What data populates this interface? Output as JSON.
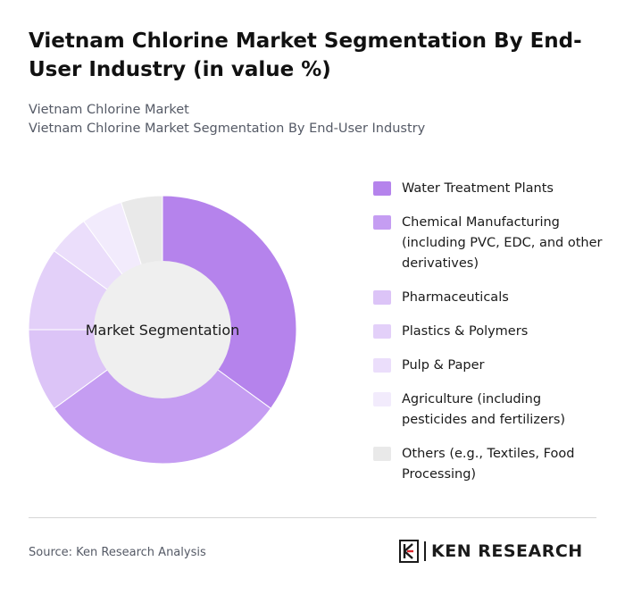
{
  "header": {
    "title": "Vietnam Chlorine Market Segmentation By End-User Industry (in value %)",
    "breadcrumb_1": "Vietnam Chlorine Market",
    "breadcrumb_2": "Vietnam Chlorine Market Segmentation By End-User Industry"
  },
  "chart_data": {
    "type": "pie",
    "variant": "donut",
    "center_label": "Market Segmentation",
    "legend_position": "right",
    "categories": [
      "Water Treatment Plants",
      "Chemical Manufacturing (including PVC, EDC, and other derivatives)",
      "Pharmaceuticals",
      "Plastics & Polymers",
      "Pulp & Paper",
      "Agriculture (including pesticides and fertilizers)",
      "Others (e.g., Textiles, Food Processing)"
    ],
    "values": [
      35,
      30,
      10,
      10,
      5,
      5,
      5
    ],
    "colors": [
      "#b583ec",
      "#c59df2",
      "#dcc4f7",
      "#e3d0f9",
      "#ebdefb",
      "#f2ebfc",
      "#e9e9e9"
    ]
  },
  "footer": {
    "source": "Source: Ken Research Analysis",
    "logo_text": "KEN RESEARCH"
  }
}
